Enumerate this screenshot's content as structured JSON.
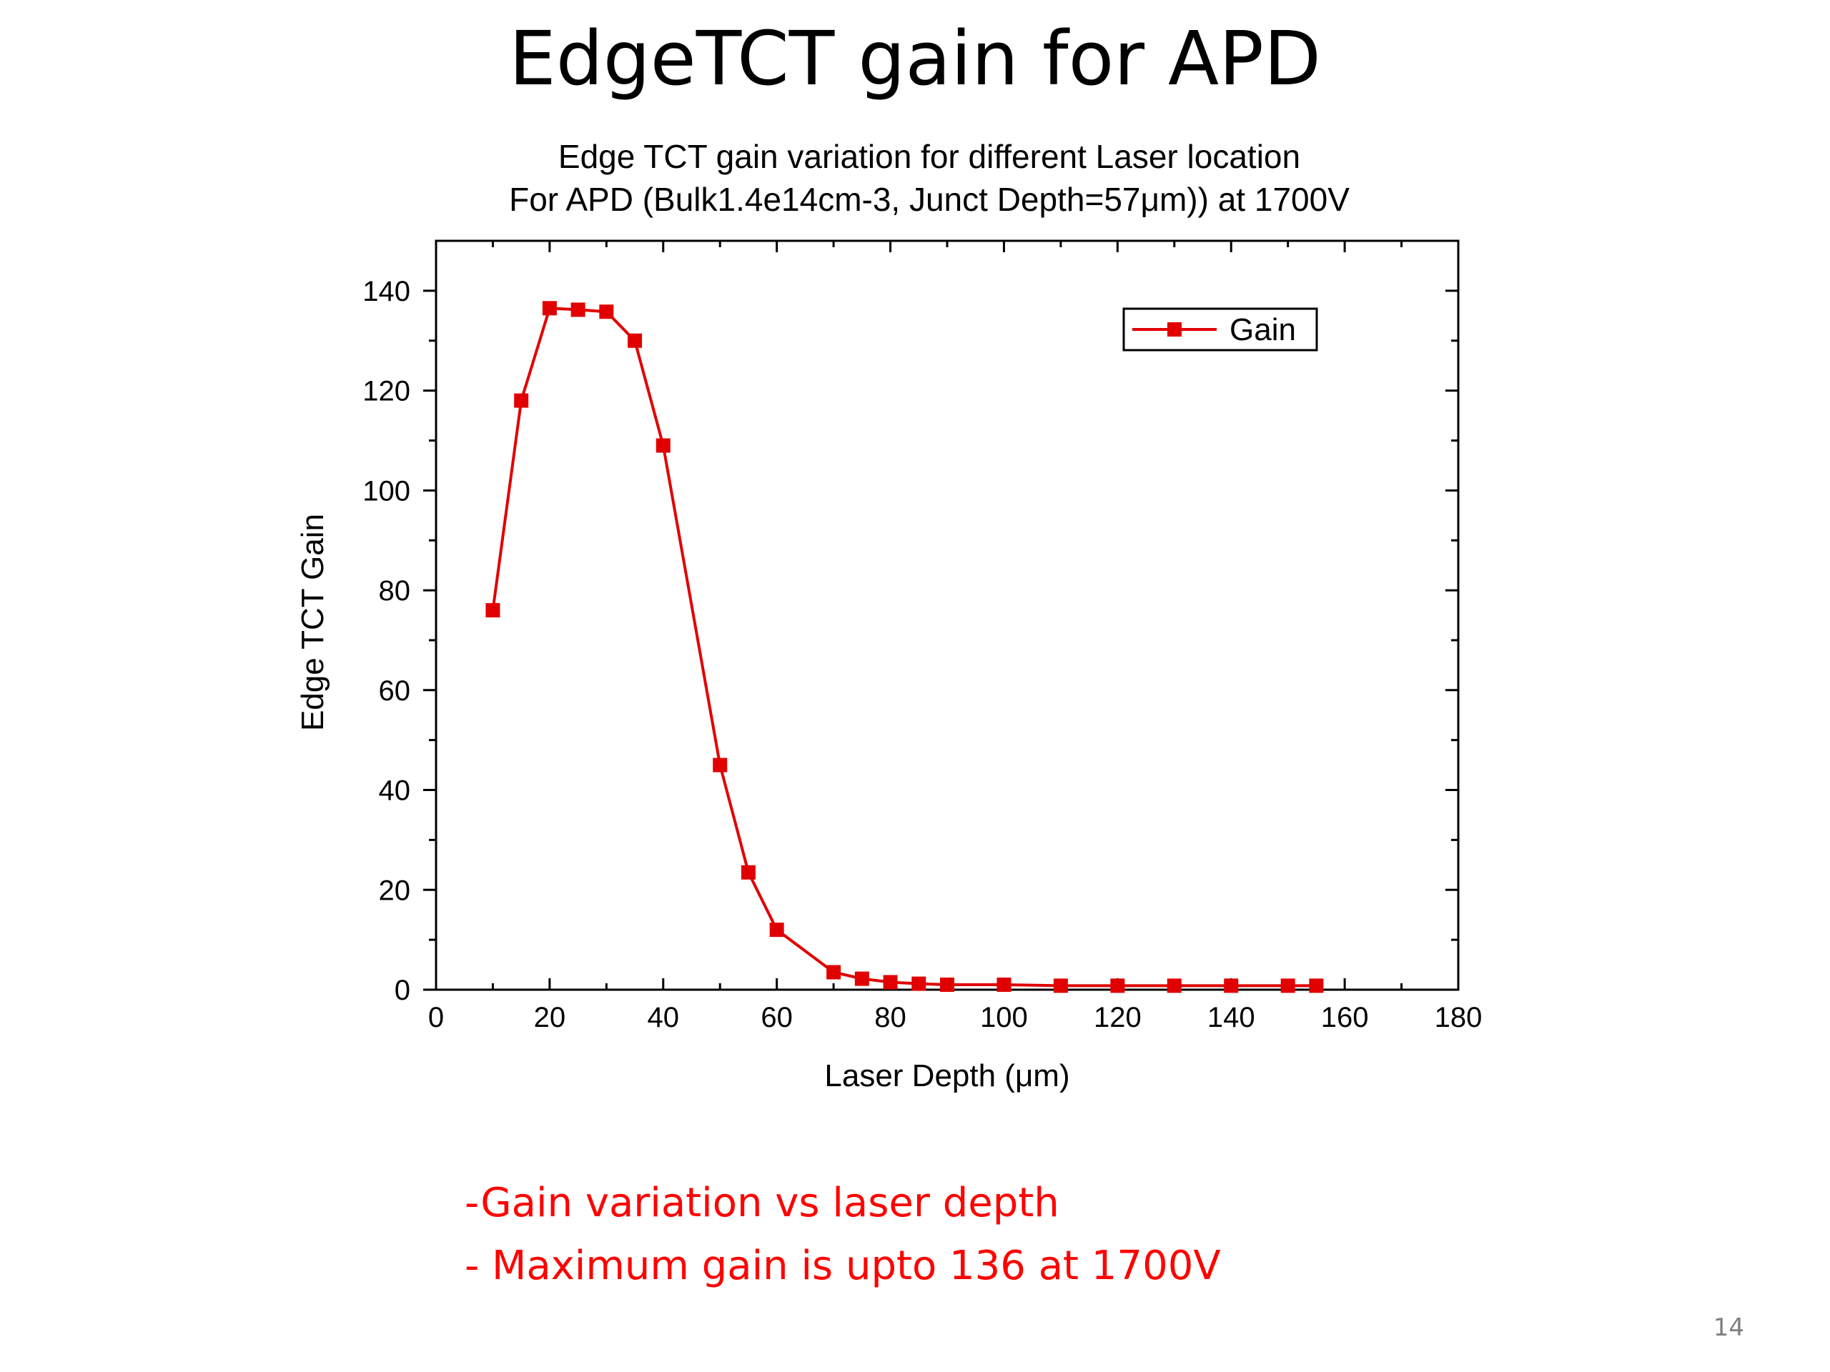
{
  "slide": {
    "title": "EdgeTCT gain for APD",
    "bullets": [
      "-Gain variation vs laser depth",
      "- Maximum gain is upto 136 at 1700V"
    ],
    "page_number": "14"
  },
  "chart_data": {
    "type": "line",
    "title_lines": [
      "Edge TCT gain variation for different Laser location",
      "For APD (Bulk1.4e14cm-3, Junct Depth=57μm)) at 1700V"
    ],
    "xlabel": "Laser Depth (μm)",
    "ylabel": "Edge TCT Gain",
    "xlim": [
      0,
      180
    ],
    "ylim": [
      0,
      150
    ],
    "xticks": [
      0,
      20,
      40,
      60,
      80,
      100,
      120,
      140,
      160,
      180
    ],
    "yticks": [
      0,
      20,
      40,
      60,
      80,
      100,
      120,
      140
    ],
    "grid": false,
    "legend": "top-right",
    "color": "#e00000",
    "series": [
      {
        "name": "Gain",
        "x": [
          10,
          15,
          20,
          25,
          30,
          35,
          40,
          50,
          55,
          60,
          70,
          75,
          80,
          85,
          90,
          100,
          110,
          120,
          130,
          140,
          150,
          155
        ],
        "y": [
          76,
          118,
          136.5,
          136.2,
          135.8,
          130,
          109,
          45,
          23.5,
          12,
          3.5,
          2.2,
          1.5,
          1.2,
          1,
          1,
          0.8,
          0.8,
          0.8,
          0.8,
          0.8,
          0.8
        ]
      }
    ]
  }
}
